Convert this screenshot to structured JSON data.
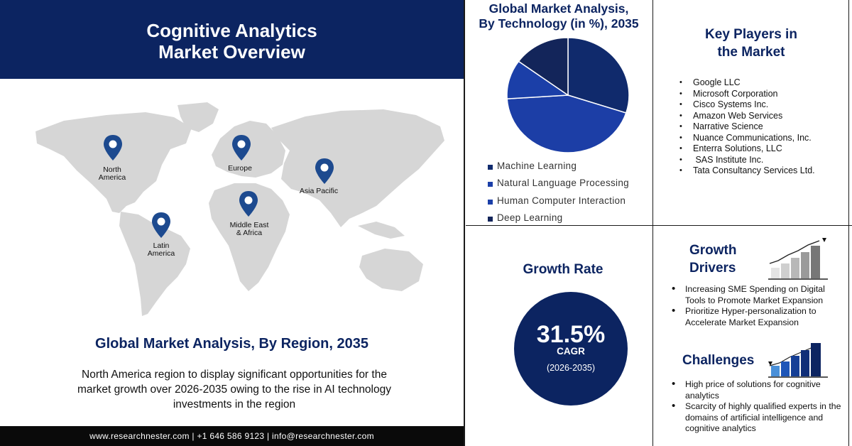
{
  "header": {
    "title_line1": "Cognitive Analytics",
    "title_line2": "Market Overview"
  },
  "map": {
    "pins": [
      {
        "label_line1": "North",
        "label_line2": "America"
      },
      {
        "label_line1": "Europe",
        "label_line2": ""
      },
      {
        "label_line1": "Asia Pacific",
        "label_line2": ""
      },
      {
        "label_line1": "Middle East",
        "label_line2": "& Africa"
      },
      {
        "label_line1": "Latin",
        "label_line2": "America"
      }
    ]
  },
  "region": {
    "title": "Global Market Analysis, By Region, 2035",
    "description": "North America region to display significant opportunities for the market growth over 2026-2035 owing to the rise in AI technology investments  in the region"
  },
  "footer": {
    "contact": "www.researchnester.com | +1 646 586 9123 | info@researchnester.com"
  },
  "technology": {
    "title_line1": "Global Market Analysis,",
    "title_line2": "By Technology (in %), 2035",
    "legend": [
      {
        "label": "Machine Learning",
        "color": "#102b6e"
      },
      {
        "label": "Natural Language Processing",
        "color": "#1b3fa8"
      },
      {
        "label": "Human Computer Interaction",
        "color": "#1b3fa8"
      },
      {
        "label": "Deep Learning",
        "color": "#13255a"
      }
    ]
  },
  "chart_data": {
    "type": "pie",
    "title": "Global Market Analysis, By Technology (in %), 2035",
    "categories": [
      "Machine Learning",
      "Natural Language Processing",
      "Human Computer Interaction",
      "Deep Learning"
    ],
    "values": [
      30,
      44,
      11,
      15
    ],
    "colors": [
      "#102a6c",
      "#1c3ea6",
      "#1b3fa8",
      "#13255a"
    ]
  },
  "key_players": {
    "title_line1": "Key Players in",
    "title_line2": "the Market",
    "items": [
      "Google LLC",
      "Microsoft Corporation",
      "Cisco Systems Inc.",
      "Amazon Web Services",
      "Narrative Science",
      "Nuance Communications, Inc.",
      "Enterra Solutions, LLC",
      " SAS Institute Inc.",
      "Tata Consultancy Services Ltd."
    ]
  },
  "growth": {
    "title": "Growth Rate",
    "cagr_value": "31.5%",
    "cagr_label": "CAGR",
    "period": "(2026-2035)"
  },
  "drivers": {
    "title_line1": "Growth",
    "title_line2": "Drivers",
    "items": [
      "Increasing SME Spending on Digital Tools to Promote Market Expansion",
      "Prioritize Hyper-personalization to Accelerate Market Expansion"
    ]
  },
  "challenges": {
    "title": "Challenges",
    "items": [
      "High price of solutions for cognitive analytics",
      "Scarcity of highly qualified experts in the domains of artificial intelligence and cognitive analytics"
    ]
  },
  "colors": {
    "navy": "#0c2461",
    "map_gray": "#d6d6d6",
    "footer": "#0a0a0a"
  }
}
